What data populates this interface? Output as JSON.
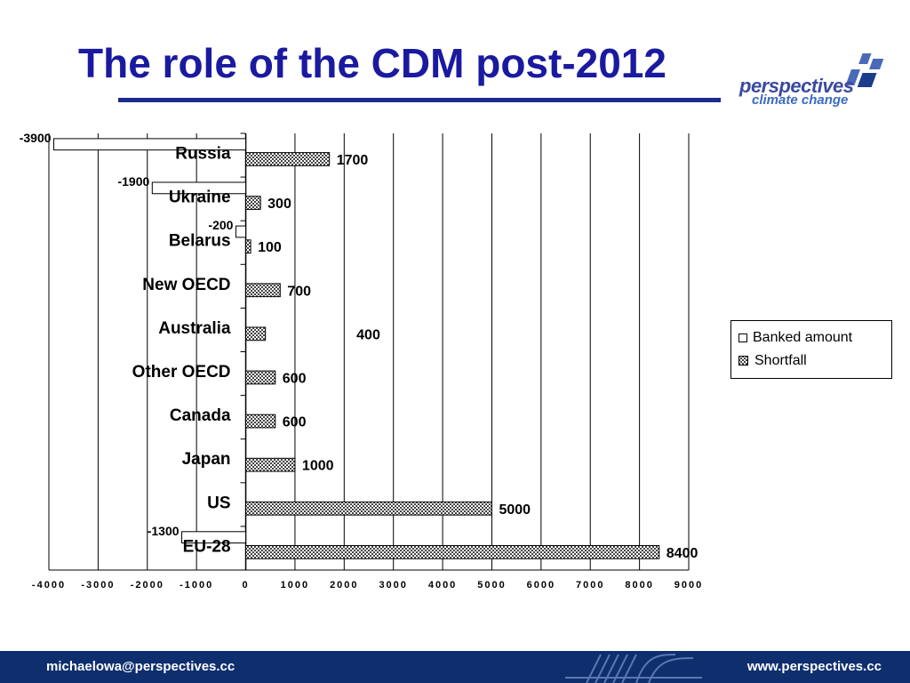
{
  "slide": {
    "title": "The role of the CDM post-2012"
  },
  "logo": {
    "line1": "perspectives",
    "line2": "climate change"
  },
  "footer": {
    "email": "michaelowa@perspectives.cc",
    "url": "www.perspectives.cc"
  },
  "colors": {
    "title": "#1a1aa0",
    "footer_bg": "#0e2e6e",
    "rule": "#1c2c8c"
  },
  "chart_data": {
    "type": "bar",
    "orientation": "horizontal",
    "categories": [
      "Russia",
      "Ukraine",
      "Belarus",
      "New OECD",
      "Australia",
      "Other OECD",
      "Canada",
      "Japan",
      "US",
      "EU-28"
    ],
    "series": [
      {
        "name": "Banked amount",
        "values": [
          -3900,
          -1900,
          -200,
          null,
          null,
          null,
          null,
          null,
          null,
          -1300
        ],
        "labels": [
          "-3900",
          "-1900",
          "-200",
          null,
          null,
          null,
          null,
          null,
          null,
          "-1300"
        ]
      },
      {
        "name": "Shortfall",
        "values": [
          1700,
          300,
          100,
          700,
          400,
          600,
          600,
          1000,
          5000,
          8400
        ],
        "labels": [
          "1700",
          "300",
          "100",
          "700",
          "400",
          "600",
          "600",
          "1000",
          "5000",
          "8400"
        ]
      }
    ],
    "xlim": [
      -4000,
      9000
    ],
    "xticks": [
      -4000,
      -3000,
      -2000,
      -1000,
      0,
      1000,
      2000,
      3000,
      4000,
      5000,
      6000,
      7000,
      8000,
      9000
    ],
    "xtick_labels": [
      "-4000",
      "-3000",
      "-2000",
      "-1000",
      "0",
      "1000",
      "2000",
      "3000",
      "4000",
      "5000",
      "6000",
      "7000",
      "8000",
      "9000"
    ],
    "grid": "vertical",
    "legend": {
      "position": "right",
      "entries": [
        "Banked amount",
        "Shortfall"
      ]
    }
  }
}
